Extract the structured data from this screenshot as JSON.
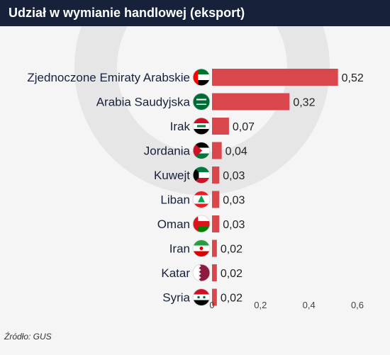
{
  "header": {
    "title": "Udział w wymianie handlowej (eksport)"
  },
  "footer": {
    "source": "Źródło: GUS"
  },
  "colors": {
    "bar": "#d9474c",
    "header_bg": "#17213a",
    "background": "#f5f5f5",
    "watermark": "#e6e6e6"
  },
  "chart_data": {
    "type": "bar",
    "orientation": "horizontal",
    "title": "Udział w wymianie handlowej (eksport)",
    "categories": [
      "Zjednoczone Emiraty Arabskie",
      "Arabia Saudyjska",
      "Irak",
      "Jordania",
      "Kuwejt",
      "Liban",
      "Oman",
      "Iran",
      "Katar",
      "Syria"
    ],
    "values": [
      0.52,
      0.32,
      0.07,
      0.04,
      0.03,
      0.03,
      0.03,
      0.02,
      0.02,
      0.02
    ],
    "value_labels": [
      "0,52",
      "0,32",
      "0,07",
      "0,04",
      "0,03",
      "0,03",
      "0,03",
      "0,02",
      "0,02",
      "0,02"
    ],
    "flag_icons": [
      "uae-flag-icon",
      "saudi-arabia-flag-icon",
      "iraq-flag-icon",
      "jordan-flag-icon",
      "kuwait-flag-icon",
      "lebanon-flag-icon",
      "oman-flag-icon",
      "iran-flag-icon",
      "qatar-flag-icon",
      "syria-flag-icon"
    ],
    "xlim": [
      0,
      0.7
    ],
    "x_ticks": [
      0,
      0.2,
      0.4,
      0.6
    ],
    "x_tick_labels": [
      "0",
      "0,2",
      "0,4",
      "0,6"
    ],
    "xlabel": "",
    "ylabel": "",
    "grid": false,
    "legend": "none"
  }
}
